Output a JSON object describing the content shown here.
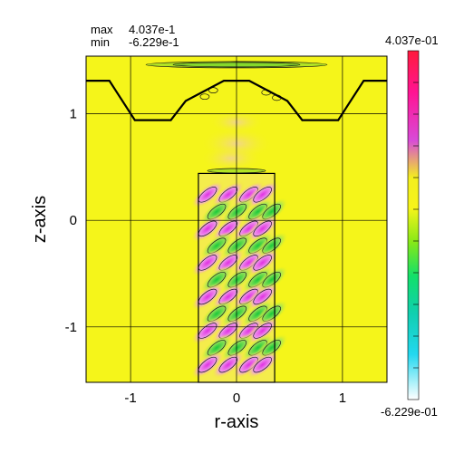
{
  "chart_data": {
    "type": "heatmap",
    "xlabel": "r-axis",
    "ylabel": "z-axis",
    "xlim": [
      -1.42,
      1.42
    ],
    "ylim": [
      -1.52,
      1.54
    ],
    "xticks": [
      -1,
      0,
      1
    ],
    "yticks": [
      -1,
      0,
      1
    ],
    "grid": true,
    "stats": {
      "max_label": "max",
      "max_value": "4.037e-1",
      "min_label": "min",
      "min_value": "-6.229e-1"
    },
    "colorbar": {
      "max_label": "4.037e-01",
      "min_label": "-6.229e-01",
      "vmin": -0.6229,
      "vmax": 0.4037,
      "stops": [
        {
          "v": 0.4037,
          "color": "#ff1a3c"
        },
        {
          "v": 0.28,
          "color": "#ff1493"
        },
        {
          "v": 0.14,
          "color": "#d84bd8"
        },
        {
          "v": 0.03,
          "color": "#f3ef1f"
        },
        {
          "v": -0.06,
          "color": "#f6f41a"
        },
        {
          "v": -0.16,
          "color": "#86e818"
        },
        {
          "v": -0.26,
          "color": "#12e06a"
        },
        {
          "v": -0.37,
          "color": "#11cfb0"
        },
        {
          "v": -0.49,
          "color": "#22d8f0"
        },
        {
          "v": -0.6229,
          "color": "#ffffff"
        }
      ]
    },
    "colors": {
      "background": "#f5f51a",
      "boundary": "#000000",
      "grid": "#000000",
      "positive": "#e52ad9",
      "negative": "#22c83a"
    },
    "boundary_profile": {
      "r": [
        -1.42,
        -1.2,
        -0.96,
        -0.62,
        -0.48,
        -0.12,
        0.12,
        0.48,
        0.62,
        0.96,
        1.2,
        1.42
      ],
      "z": [
        1.31,
        1.31,
        0.94,
        0.94,
        1.12,
        1.31,
        1.31,
        1.12,
        0.94,
        0.94,
        1.31,
        1.31
      ]
    },
    "inner_box": {
      "r": [
        -0.36,
        0.36
      ],
      "z": [
        -1.52,
        0.44
      ]
    }
  }
}
